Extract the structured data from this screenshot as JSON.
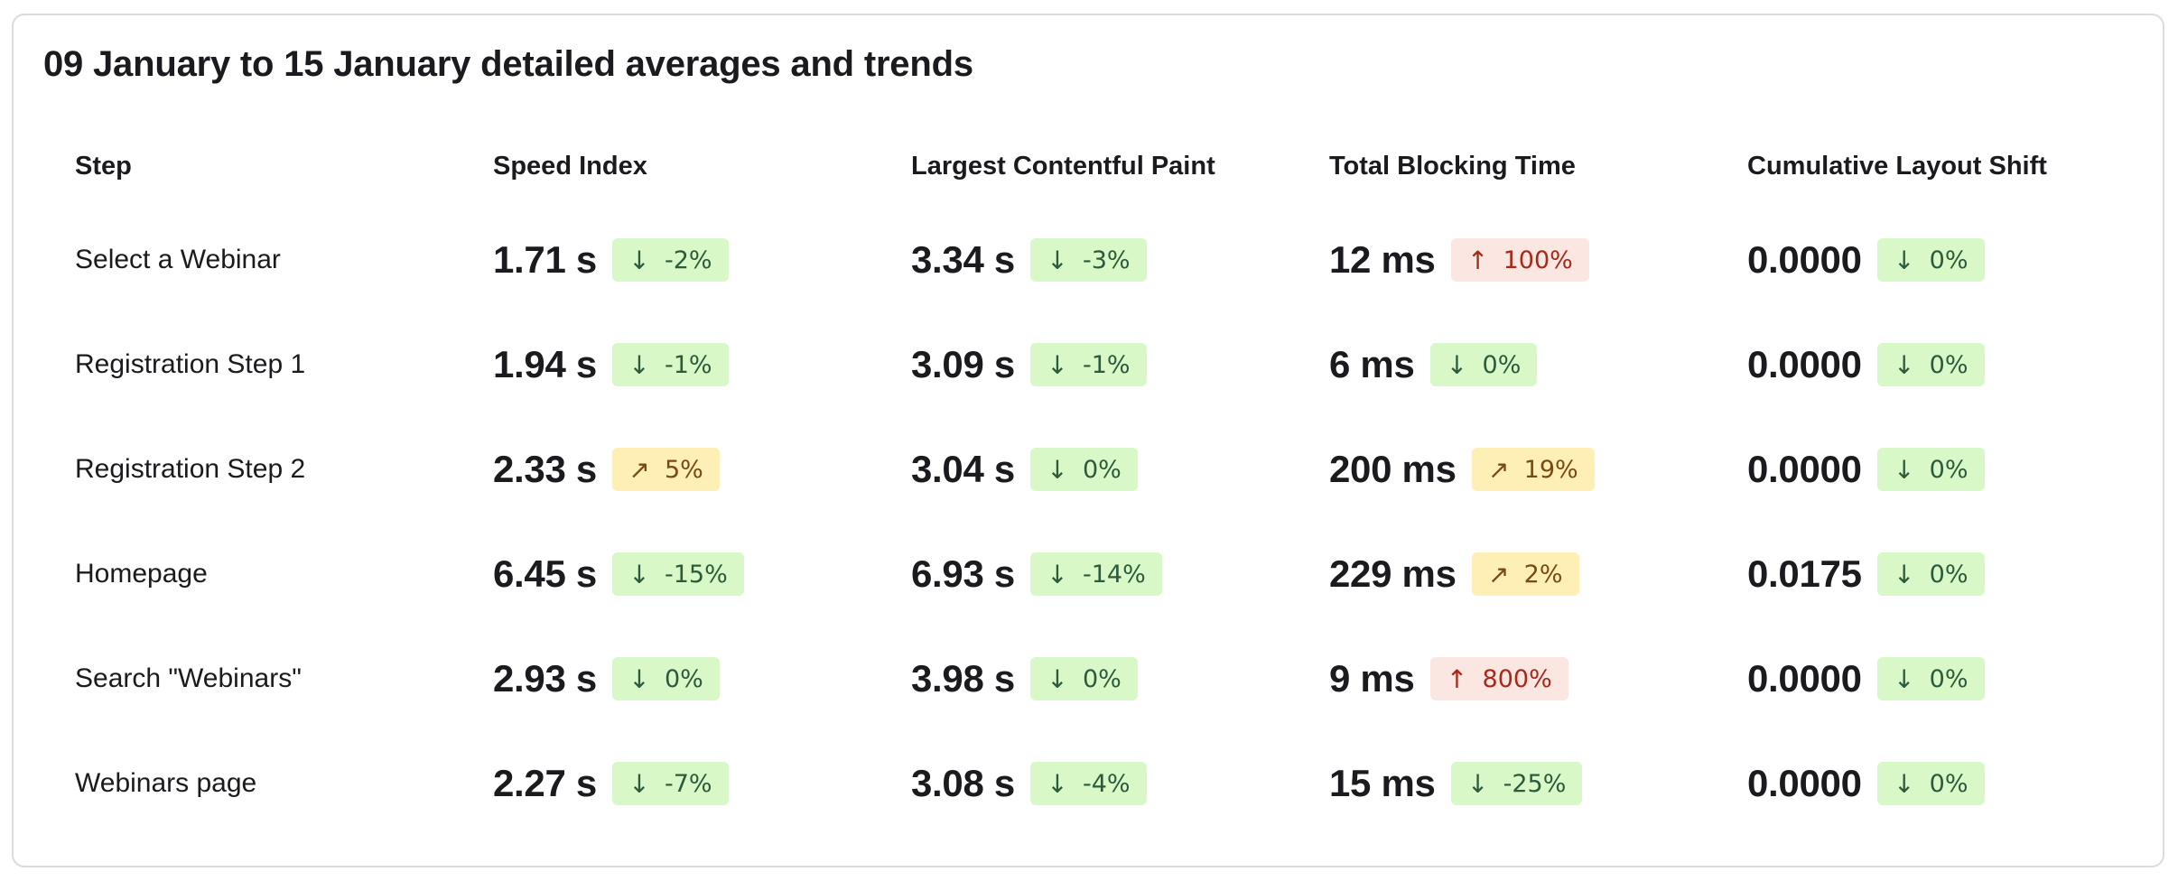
{
  "title": "09 January to 15 January detailed averages and trends",
  "columns": {
    "step": "Step",
    "speed_index": "Speed Index",
    "lcp": "Largest Contentful Paint",
    "tbt": "Total Blocking Time",
    "cls": "Cumulative Layout Shift"
  },
  "status_colors": {
    "good_bg": "#d8f8c7",
    "warn_bg": "#fdefb6",
    "bad_bg": "#fbe6e2"
  },
  "rows": [
    {
      "step": "Select a Webinar",
      "si": {
        "value": "1.71 s",
        "trend": "-2%",
        "arrow": "↓",
        "status": "good"
      },
      "lcp": {
        "value": "3.34 s",
        "trend": "-3%",
        "arrow": "↓",
        "status": "good"
      },
      "tbt": {
        "value": "12 ms",
        "trend": "100%",
        "arrow": "↑",
        "status": "bad"
      },
      "cls": {
        "value": "0.0000",
        "trend": "0%",
        "arrow": "↓",
        "status": "good"
      }
    },
    {
      "step": "Registration Step 1",
      "si": {
        "value": "1.94 s",
        "trend": "-1%",
        "arrow": "↓",
        "status": "good"
      },
      "lcp": {
        "value": "3.09 s",
        "trend": "-1%",
        "arrow": "↓",
        "status": "good"
      },
      "tbt": {
        "value": "6 ms",
        "trend": "0%",
        "arrow": "↓",
        "status": "good"
      },
      "cls": {
        "value": "0.0000",
        "trend": "0%",
        "arrow": "↓",
        "status": "good"
      }
    },
    {
      "step": "Registration Step 2",
      "si": {
        "value": "2.33 s",
        "trend": "5%",
        "arrow": "↗",
        "status": "warn"
      },
      "lcp": {
        "value": "3.04 s",
        "trend": "0%",
        "arrow": "↓",
        "status": "good"
      },
      "tbt": {
        "value": "200 ms",
        "trend": "19%",
        "arrow": "↗",
        "status": "warn"
      },
      "cls": {
        "value": "0.0000",
        "trend": "0%",
        "arrow": "↓",
        "status": "good"
      }
    },
    {
      "step": "Homepage",
      "si": {
        "value": "6.45 s",
        "trend": "-15%",
        "arrow": "↓",
        "status": "good"
      },
      "lcp": {
        "value": "6.93 s",
        "trend": "-14%",
        "arrow": "↓",
        "status": "good"
      },
      "tbt": {
        "value": "229 ms",
        "trend": "2%",
        "arrow": "↗",
        "status": "warn"
      },
      "cls": {
        "value": "0.0175",
        "trend": "0%",
        "arrow": "↓",
        "status": "good"
      }
    },
    {
      "step": "Search \"Webinars\"",
      "si": {
        "value": "2.93 s",
        "trend": "0%",
        "arrow": "↓",
        "status": "good"
      },
      "lcp": {
        "value": "3.98 s",
        "trend": "0%",
        "arrow": "↓",
        "status": "good"
      },
      "tbt": {
        "value": "9 ms",
        "trend": "800%",
        "arrow": "↑",
        "status": "bad"
      },
      "cls": {
        "value": "0.0000",
        "trend": "0%",
        "arrow": "↓",
        "status": "good"
      }
    },
    {
      "step": "Webinars page",
      "si": {
        "value": "2.27 s",
        "trend": "-7%",
        "arrow": "↓",
        "status": "good"
      },
      "lcp": {
        "value": "3.08 s",
        "trend": "-4%",
        "arrow": "↓",
        "status": "good"
      },
      "tbt": {
        "value": "15 ms",
        "trend": "-25%",
        "arrow": "↓",
        "status": "good"
      },
      "cls": {
        "value": "0.0000",
        "trend": "0%",
        "arrow": "↓",
        "status": "good"
      }
    }
  ]
}
